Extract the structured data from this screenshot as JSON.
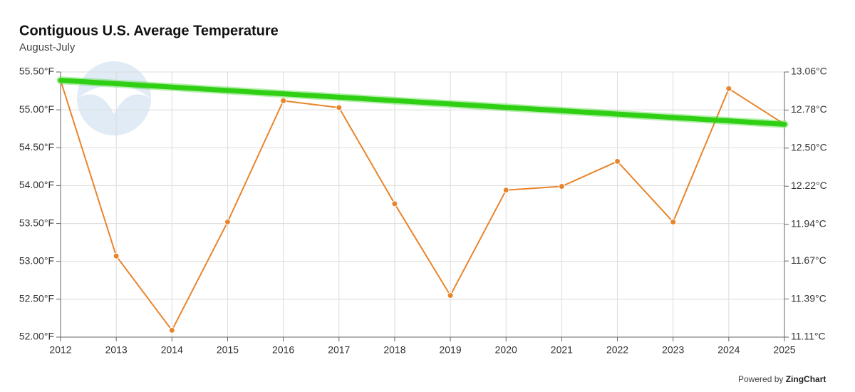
{
  "chart_data": {
    "type": "line",
    "title": "Contiguous U.S. Average Temperature",
    "subtitle": "August-July",
    "x": [
      2012,
      2013,
      2014,
      2015,
      2016,
      2017,
      2018,
      2019,
      2020,
      2021,
      2022,
      2023,
      2024,
      2025
    ],
    "xlim": [
      2012,
      2025
    ],
    "xticks": [
      2012,
      2013,
      2014,
      2015,
      2016,
      2017,
      2018,
      2019,
      2020,
      2021,
      2022,
      2023,
      2024,
      2025
    ],
    "series": [
      {
        "color": "#e8852c",
        "markers": true,
        "values": [
          55.39,
          53.07,
          52.09,
          53.52,
          55.12,
          55.03,
          53.76,
          52.55,
          53.94,
          53.99,
          54.32,
          53.52,
          55.28,
          54.81
        ]
      },
      {
        "color": "#2fd014",
        "markers": false,
        "x": [
          2012,
          2025
        ],
        "values": [
          55.39,
          54.81
        ]
      }
    ],
    "ylim": [
      52.0,
      55.5
    ],
    "yticks": [
      {
        "value": 52.0,
        "label": "52.00°F"
      },
      {
        "value": 52.5,
        "label": "52.50°F"
      },
      {
        "value": 53.0,
        "label": "53.00°F"
      },
      {
        "value": 53.5,
        "label": "53.50°F"
      },
      {
        "value": 54.0,
        "label": "54.00°F"
      },
      {
        "value": 54.5,
        "label": "54.50°F"
      },
      {
        "value": 55.0,
        "label": "55.00°F"
      },
      {
        "value": 55.5,
        "label": "55.50°F"
      }
    ],
    "y2lim": [
      11.11,
      13.06
    ],
    "y2ticks": [
      {
        "value": 11.11,
        "label": "11.11°C"
      },
      {
        "value": 11.39,
        "label": "11.39°C"
      },
      {
        "value": 11.67,
        "label": "11.67°C"
      },
      {
        "value": 11.94,
        "label": "11.94°C"
      },
      {
        "value": 12.22,
        "label": "12.22°C"
      },
      {
        "value": 12.5,
        "label": "12.50°C"
      },
      {
        "value": 12.78,
        "label": "12.78°C"
      },
      {
        "value": 13.06,
        "label": "13.06°C"
      }
    ],
    "grid": true,
    "credit_prefix": "Powered by",
    "credit_brand": "ZingChart"
  }
}
